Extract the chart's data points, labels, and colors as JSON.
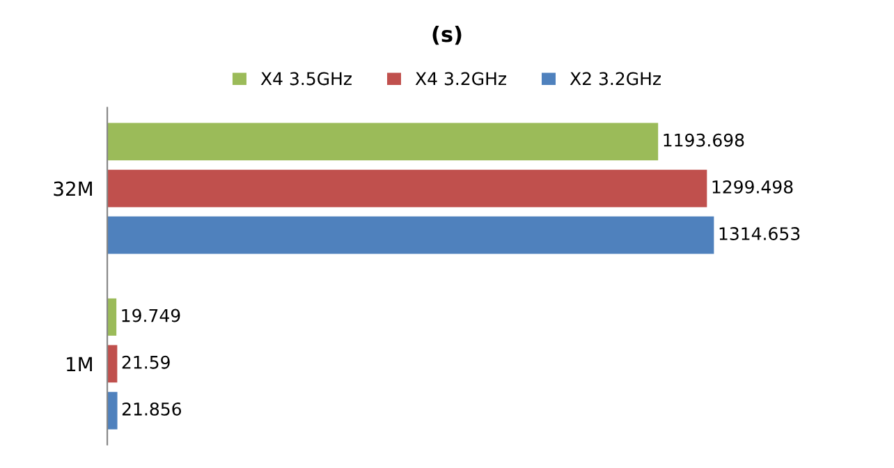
{
  "chart_data": {
    "type": "bar",
    "orientation": "horizontal",
    "title": "(s)",
    "categories": [
      "32M",
      "1M"
    ],
    "series": [
      {
        "name": "X4 3.5GHz",
        "color": "#9bbb59",
        "values": [
          1193.698,
          19.749
        ]
      },
      {
        "name": "X4 3.2GHz",
        "color": "#c0504d",
        "values": [
          1299.498,
          21.59
        ]
      },
      {
        "name": "X2 3.2GHz",
        "color": "#4f81bd",
        "values": [
          1314.653,
          21.856
        ]
      }
    ],
    "data_labels": true,
    "legend": "top",
    "grid": false,
    "tick_labels": "y"
  }
}
